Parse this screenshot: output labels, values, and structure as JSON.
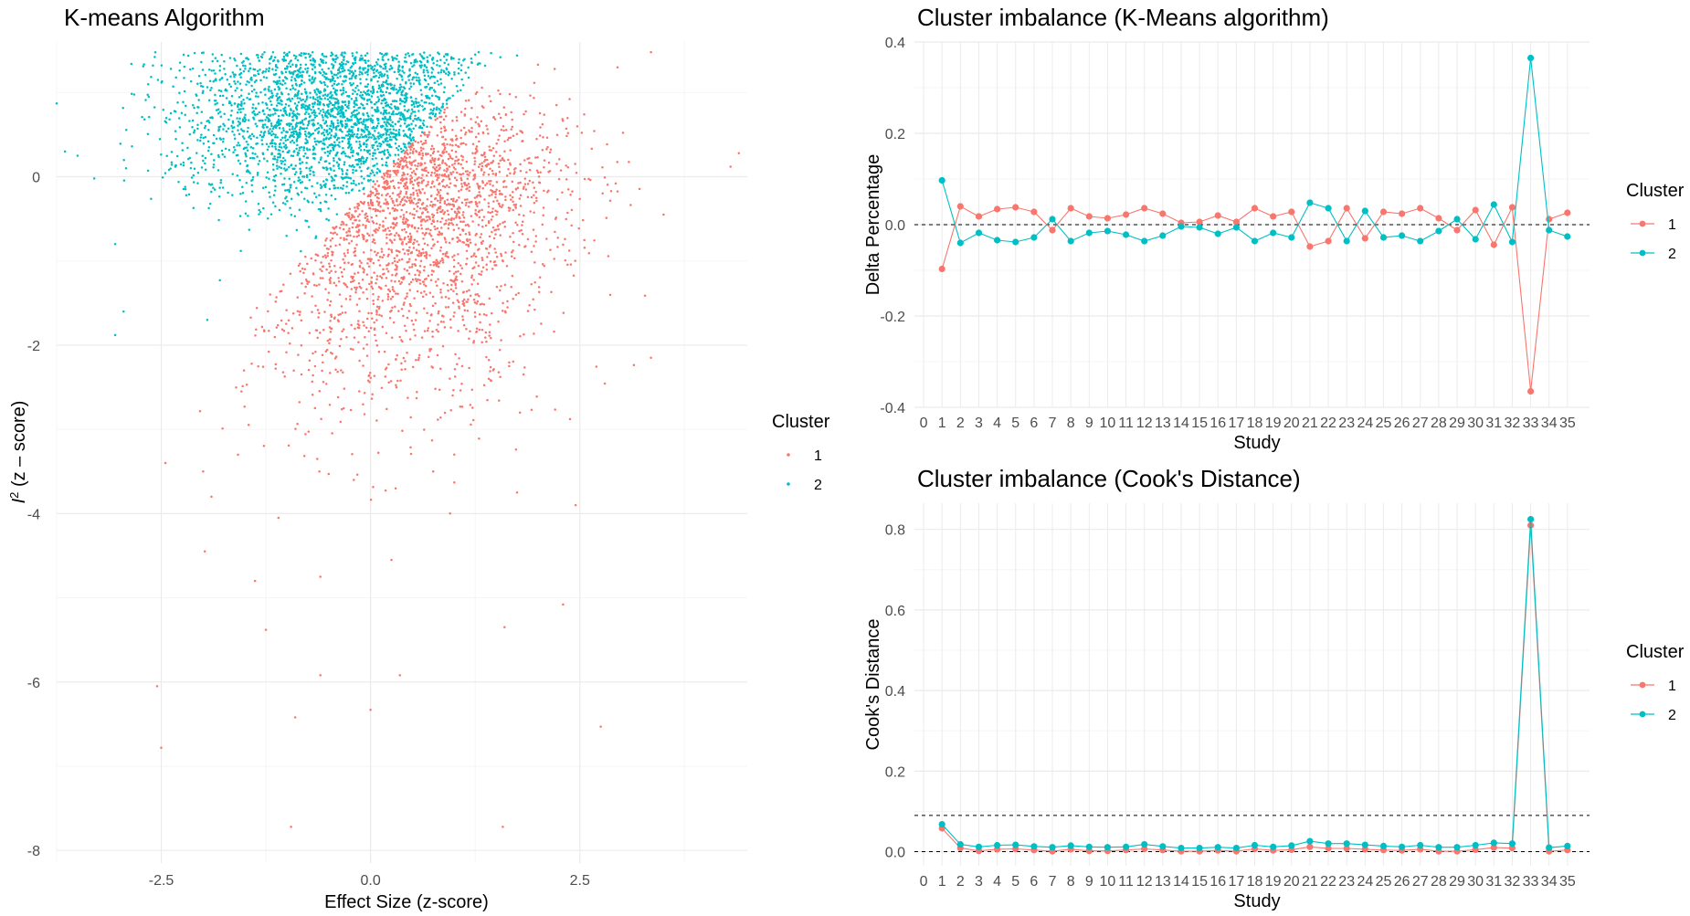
{
  "colors": {
    "cluster1": "#F8766D",
    "cluster2": "#00BFC4",
    "grid_major": "#ebebeb",
    "grid_minor": "#f5f5f5",
    "tick": "#4d4d4d"
  },
  "chart_data": [
    {
      "id": "kmeans",
      "type": "scatter",
      "title": "K-means Algorithm",
      "xlabel": "Effect Size (z-score)",
      "ylabel_main": "I",
      "ylabel_sup": "2",
      "ylabel_rest": " (z – score)",
      "xlim": [
        -3.75,
        4.5
      ],
      "ylim": [
        -8.15,
        1.6
      ],
      "x_ticks": [
        -2.5,
        0,
        2.5
      ],
      "x_tick_labels": [
        "-2.5",
        "0.0",
        "2.5"
      ],
      "y_ticks": [
        0,
        -2,
        -4,
        -6,
        -8
      ],
      "y_tick_labels": [
        "0",
        "-2",
        "-4",
        "-6",
        "-8"
      ],
      "grid": true,
      "legend_title": "Cluster",
      "legend_labels": [
        "1",
        "2"
      ],
      "legend_position": "right",
      "series": [
        {
          "name": "1",
          "n_points": 2600,
          "cluster_rule": "y < 1.05*x - 0.12"
        },
        {
          "name": "2",
          "n_points": 3000,
          "cluster_rule": "y >= 1.05*x - 0.12"
        }
      ],
      "outliers_cluster1": [
        [
          -2.55,
          -6.05
        ],
        [
          -2.5,
          -6.78
        ],
        [
          -0.95,
          -7.72
        ],
        [
          1.58,
          -7.72
        ],
        [
          0.0,
          -6.33
        ],
        [
          -0.6,
          -5.92
        ],
        [
          0.35,
          -5.92
        ],
        [
          -0.9,
          -6.42
        ],
        [
          2.75,
          -6.53
        ],
        [
          1.6,
          -5.35
        ],
        [
          2.3,
          -5.08
        ],
        [
          -1.25,
          -5.38
        ],
        [
          -1.38,
          -4.8
        ],
        [
          -0.6,
          -4.75
        ],
        [
          0.25,
          -4.55
        ],
        [
          -1.98,
          -4.45
        ],
        [
          0.95,
          -4.0
        ],
        [
          -1.1,
          -4.05
        ],
        [
          2.45,
          -3.9
        ],
        [
          -2.45,
          -3.4
        ],
        [
          1.75,
          -3.75
        ],
        [
          -1.9,
          -3.8
        ],
        [
          -2.0,
          -3.5
        ],
        [
          3.35,
          -2.15
        ],
        [
          3.5,
          -0.45
        ],
        [
          4.4,
          0.28
        ],
        [
          4.3,
          0.12
        ],
        [
          3.35,
          1.48
        ],
        [
          2.95,
          1.3
        ],
        [
          2.2,
          1.28
        ],
        [
          2.0,
          1.33
        ],
        [
          1.0,
          -3.3
        ],
        [
          0.3,
          -3.7
        ],
        [
          -0.2,
          -3.6
        ]
      ],
      "outliers_cluster2": [
        [
          -3.75,
          0.87
        ],
        [
          -3.65,
          0.3
        ],
        [
          -3.5,
          0.25
        ],
        [
          -3.3,
          -0.02
        ],
        [
          -3.05,
          -0.8
        ],
        [
          -2.95,
          -1.6
        ],
        [
          -3.05,
          -1.88
        ],
        [
          -2.6,
          1.32
        ],
        [
          -2.65,
          0.95
        ],
        [
          -2.7,
          0.68
        ],
        [
          -2.85,
          0.36
        ],
        [
          -1.8,
          -1.23
        ],
        [
          -2.2,
          -0.22
        ],
        [
          -1.55,
          -0.88
        ],
        [
          1.55,
          1.42
        ],
        [
          1.75,
          1.44
        ],
        [
          -1.95,
          -1.7
        ]
      ]
    },
    {
      "id": "kmeans_imbalance",
      "type": "line",
      "title": "Cluster imbalance (K-Means algorithm)",
      "xlabel": "Study",
      "ylabel": "Delta Percentage",
      "xlim": [
        -0.5,
        36.2
      ],
      "ylim": [
        -0.4,
        0.4
      ],
      "y_ticks": [
        -0.4,
        -0.2,
        0.0,
        0.2,
        0.4
      ],
      "y_tick_labels": [
        "-0.4",
        "-0.2",
        "0.0",
        "0.2",
        "0.4"
      ],
      "x": [
        1,
        2,
        3,
        4,
        5,
        6,
        7,
        8,
        9,
        10,
        11,
        12,
        13,
        14,
        15,
        16,
        17,
        18,
        19,
        20,
        21,
        22,
        23,
        24,
        25,
        26,
        27,
        28,
        29,
        30,
        31,
        32,
        33,
        34,
        35
      ],
      "x_tick_labels": [
        "0",
        "1",
        "2",
        "3",
        "4",
        "5",
        "6",
        "7",
        "8",
        "9",
        "10",
        "11",
        "12",
        "13",
        "14",
        "15",
        "16",
        "17",
        "18",
        "19",
        "20",
        "21",
        "22",
        "23",
        "24",
        "25",
        "26",
        "27",
        "28",
        "29",
        "30",
        "31",
        "32",
        "33",
        "34",
        "35"
      ],
      "hlines": [
        0.0
      ],
      "grid": true,
      "legend_title": "Cluster",
      "legend_labels": [
        "1",
        "2"
      ],
      "legend_position": "right",
      "series": [
        {
          "name": "1",
          "values": [
            -0.097,
            0.04,
            0.018,
            0.034,
            0.038,
            0.028,
            -0.012,
            0.036,
            0.018,
            0.014,
            0.022,
            0.036,
            0.024,
            0.004,
            0.006,
            0.02,
            0.006,
            0.036,
            0.018,
            0.028,
            -0.048,
            -0.036,
            0.036,
            -0.03,
            0.028,
            0.024,
            0.036,
            0.014,
            -0.012,
            0.032,
            -0.044,
            0.038,
            -0.365,
            0.012,
            0.026
          ]
        },
        {
          "name": "2",
          "values": [
            0.097,
            -0.04,
            -0.018,
            -0.034,
            -0.038,
            -0.028,
            0.012,
            -0.036,
            -0.018,
            -0.014,
            -0.022,
            -0.036,
            -0.024,
            -0.004,
            -0.006,
            -0.02,
            -0.006,
            -0.036,
            -0.018,
            -0.028,
            0.048,
            0.036,
            -0.036,
            0.03,
            -0.028,
            -0.024,
            -0.036,
            -0.014,
            0.012,
            -0.032,
            0.044,
            -0.038,
            0.365,
            -0.012,
            -0.026
          ]
        }
      ]
    },
    {
      "id": "cooks_imbalance",
      "type": "line",
      "title": "Cluster imbalance (Cook's Distance)",
      "xlabel": "Study",
      "ylabel": "Cook's Distance",
      "xlim": [
        -0.5,
        36.2
      ],
      "ylim": [
        -0.035,
        0.865
      ],
      "y_ticks": [
        0.0,
        0.2,
        0.4,
        0.6,
        0.8
      ],
      "y_tick_labels": [
        "0.0",
        "0.2",
        "0.4",
        "0.6",
        "0.8"
      ],
      "x": [
        1,
        2,
        3,
        4,
        5,
        6,
        7,
        8,
        9,
        10,
        11,
        12,
        13,
        14,
        15,
        16,
        17,
        18,
        19,
        20,
        21,
        22,
        23,
        24,
        25,
        26,
        27,
        28,
        29,
        30,
        31,
        32,
        33,
        34,
        35
      ],
      "x_tick_labels": [
        "0",
        "1",
        "2",
        "3",
        "4",
        "5",
        "6",
        "7",
        "8",
        "9",
        "10",
        "11",
        "12",
        "13",
        "14",
        "15",
        "16",
        "17",
        "18",
        "19",
        "20",
        "21",
        "22",
        "23",
        "24",
        "25",
        "26",
        "27",
        "28",
        "29",
        "30",
        "31",
        "32",
        "33",
        "34",
        "35"
      ],
      "hlines": [
        0.0,
        0.09
      ],
      "grid": true,
      "legend_title": "Cluster",
      "legend_labels": [
        "1",
        "2"
      ],
      "legend_position": "right",
      "series": [
        {
          "name": "1",
          "values": [
            0.058,
            0.009,
            0.002,
            0.006,
            0.007,
            0.004,
            0.001,
            0.006,
            0.002,
            0.002,
            0.004,
            0.007,
            0.004,
            0.001,
            0.001,
            0.003,
            0.001,
            0.007,
            0.003,
            0.005,
            0.012,
            0.008,
            0.008,
            0.006,
            0.004,
            0.003,
            0.006,
            0.001,
            0.001,
            0.005,
            0.01,
            0.009,
            0.81,
            0.001,
            0.004
          ]
        },
        {
          "name": "2",
          "values": [
            0.068,
            0.018,
            0.012,
            0.016,
            0.017,
            0.013,
            0.011,
            0.015,
            0.012,
            0.011,
            0.012,
            0.018,
            0.013,
            0.009,
            0.009,
            0.011,
            0.009,
            0.016,
            0.012,
            0.015,
            0.026,
            0.02,
            0.02,
            0.017,
            0.014,
            0.012,
            0.016,
            0.011,
            0.011,
            0.016,
            0.022,
            0.02,
            0.825,
            0.01,
            0.014
          ]
        }
      ]
    }
  ]
}
